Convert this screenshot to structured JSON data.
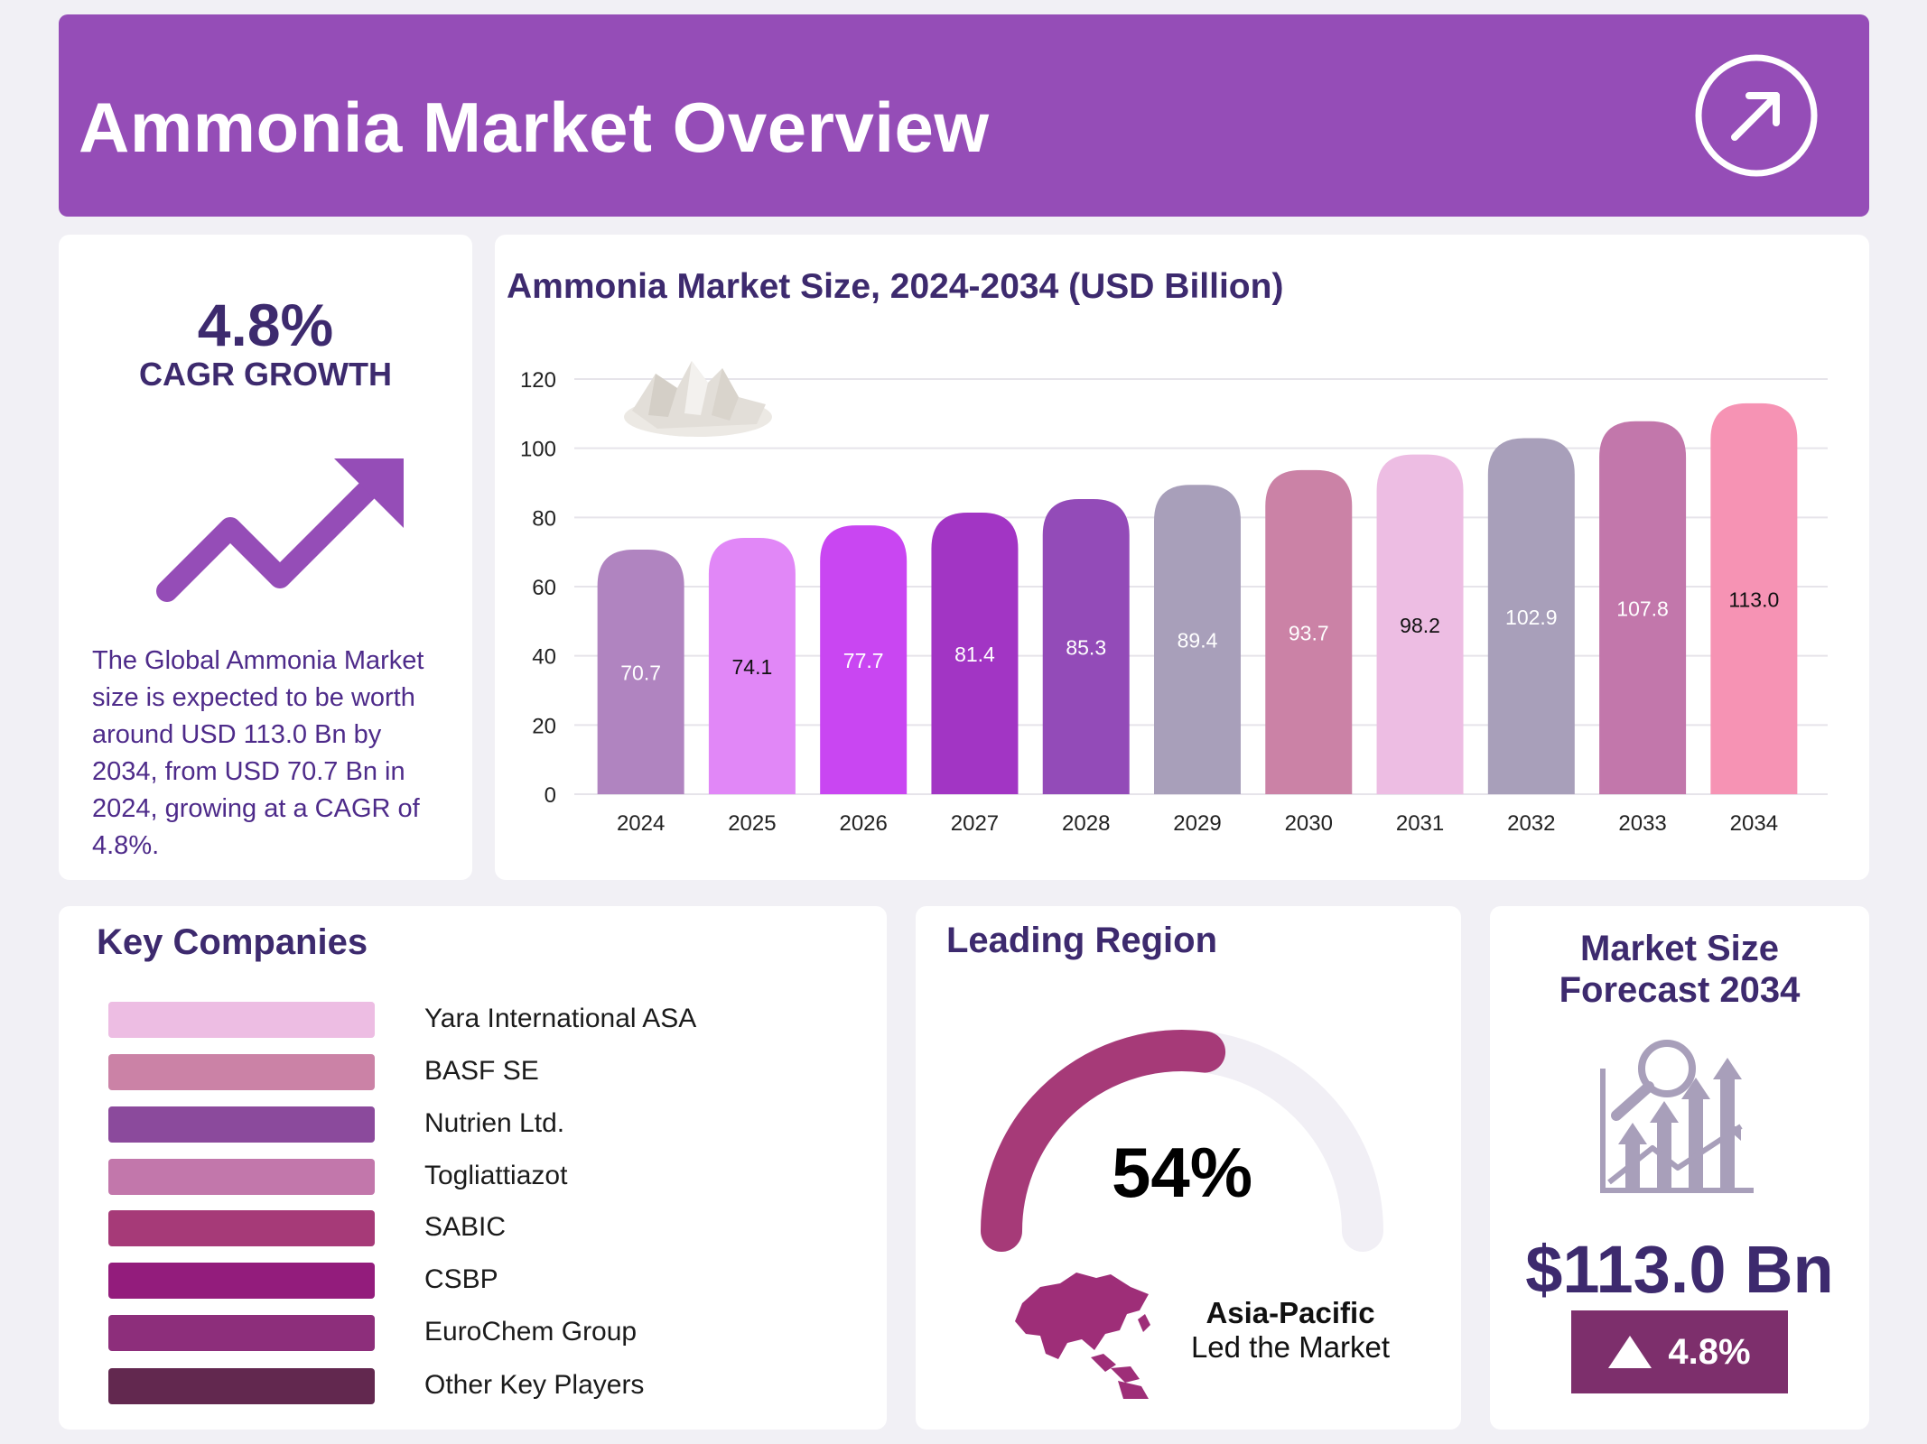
{
  "header": {
    "title": "Ammonia Market Overview"
  },
  "cagr": {
    "value": "4.8%",
    "label": "CAGR GROWTH",
    "description": "The Global Ammonia Market size is expected to be worth around USD 113.0 Bn by 2034, from USD 70.7 Bn in 2024, growing at a CAGR of 4.8%."
  },
  "chart_data": {
    "type": "bar",
    "title": "Ammonia Market Size, 2024-2034 (USD Billion)",
    "xlabel": "",
    "ylabel": "",
    "categories": [
      "2024",
      "2025",
      "2026",
      "2027",
      "2028",
      "2029",
      "2030",
      "2031",
      "2032",
      "2033",
      "2034"
    ],
    "values": [
      70.7,
      74.1,
      77.7,
      81.4,
      85.3,
      89.4,
      93.7,
      98.2,
      102.9,
      107.8,
      113.0
    ],
    "value_labels": [
      "70.7",
      "74.1",
      "77.7",
      "81.4",
      "85.3",
      "89.4",
      "93.7",
      "98.2",
      "102.9",
      "107.8",
      "113.0"
    ],
    "ylim": [
      0,
      120
    ],
    "yticks": [
      0,
      20,
      40,
      60,
      80,
      100,
      120
    ],
    "grid": true,
    "bar_colors": [
      "#b084c0",
      "#e187f7",
      "#c946f2",
      "#a235c4",
      "#934bb8",
      "#a89fba",
      "#cb82a6",
      "#edbde3",
      "#a89fba",
      "#c277ab",
      "#f693b4"
    ],
    "label_colors": [
      "#ffffff",
      "#111111",
      "#ffffff",
      "#ffffff",
      "#ffffff",
      "#ffffff",
      "#ffffff",
      "#111111",
      "#ffffff",
      "#ffffff",
      "#111111"
    ]
  },
  "companies": {
    "title": "Key Companies",
    "items": [
      {
        "name": "Yara International ASA",
        "color": "#edbde3"
      },
      {
        "name": "BASF SE",
        "color": "#cb82a6"
      },
      {
        "name": "Nutrien Ltd.",
        "color": "#8b4a9c"
      },
      {
        "name": "Togliattiazot",
        "color": "#c277ab"
      },
      {
        "name": "SABIC",
        "color": "#a63a78"
      },
      {
        "name": "CSBP",
        "color": "#931c7c"
      },
      {
        "name": "EuroChem Group",
        "color": "#8d2e7b"
      },
      {
        "name": "Other Key Players",
        "color": "#62284f"
      }
    ]
  },
  "region": {
    "title": "Leading Region",
    "share": 54,
    "share_label": "54%",
    "name": "Asia-Pacific",
    "subtitle": "Led the Market",
    "accent": "#a63a78",
    "track": "#f1eff5"
  },
  "forecast": {
    "title_line1": "Market Size",
    "title_line2": "Forecast 2034",
    "value": "$113.0 Bn",
    "growth": "4.8%",
    "icon": "growth-chart-magnifier-icon"
  }
}
